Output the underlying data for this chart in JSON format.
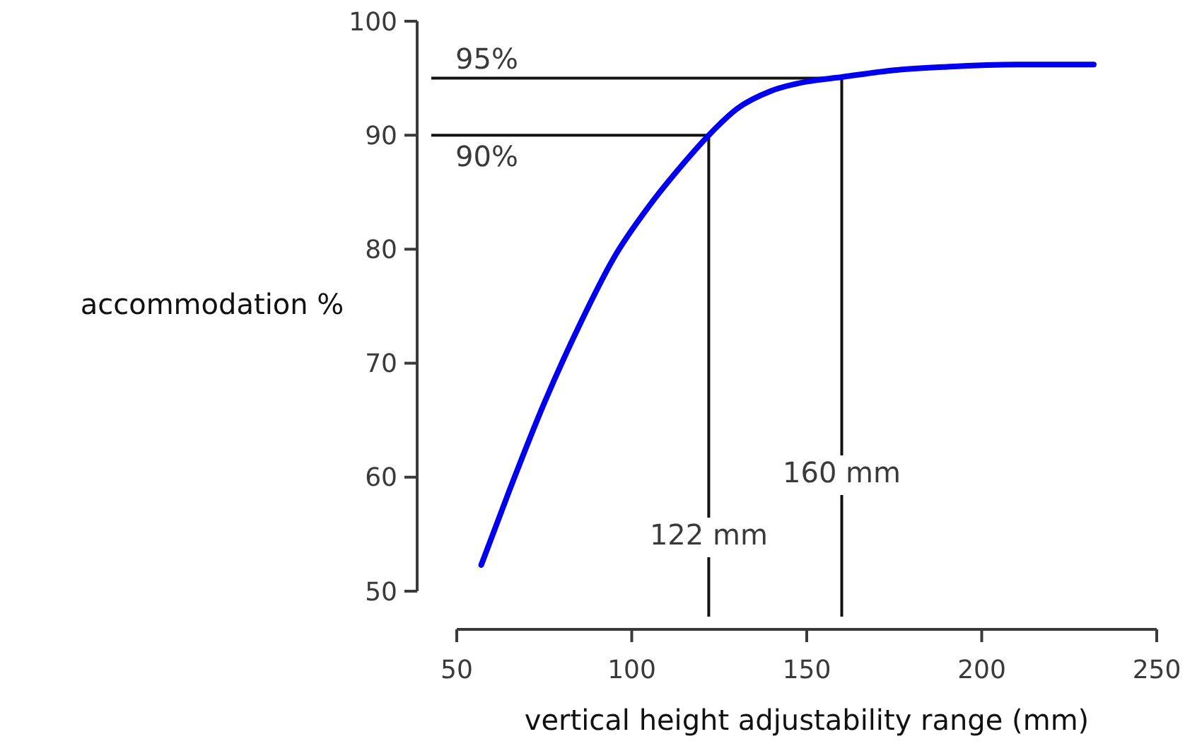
{
  "chart_data": {
    "type": "line",
    "xlabel": "vertical height adjustability range (mm)",
    "ylabel": "accommodation %",
    "xlim": [
      50,
      250
    ],
    "xticks": [
      50,
      100,
      150,
      200,
      250
    ],
    "ylim": [
      50,
      100
    ],
    "yticks": [
      50,
      60,
      70,
      80,
      90,
      100
    ],
    "series": [
      {
        "color": "#0000ee",
        "x": [
          57,
          65,
          75,
          85,
          95,
          105,
          115,
          122,
          130,
          140,
          150,
          160,
          175,
          190,
          210,
          232
        ],
        "values": [
          52.3,
          58.8,
          66.5,
          73.3,
          79.3,
          83.8,
          87.6,
          90,
          92.3,
          93.9,
          94.7,
          95.1,
          95.7,
          96,
          96.2,
          96.2
        ]
      }
    ],
    "ref_lines": [
      {
        "axis": "y",
        "value": 90,
        "label": "90%"
      },
      {
        "axis": "y",
        "value": 95,
        "label": "95%"
      },
      {
        "axis": "x",
        "value": 122,
        "label": "122 mm"
      },
      {
        "axis": "x",
        "value": 160,
        "label": "160 mm"
      }
    ],
    "grid": false,
    "marker": "none",
    "line_style": "solid"
  }
}
